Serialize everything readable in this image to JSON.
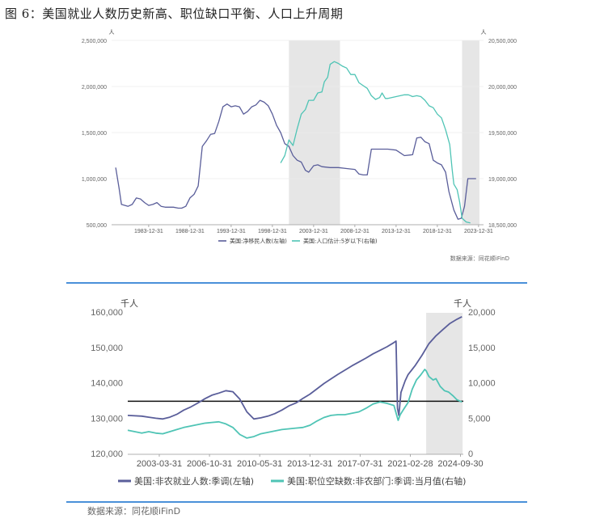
{
  "figure_title": "图 6：美国就业人数历史新高、职位缺口平衡、人口上升周期",
  "chart_data": [
    {
      "type": "line",
      "left_unit": "人",
      "right_unit": "人",
      "ylim_left": [
        500000,
        2500000
      ],
      "ylim_right": [
        18500000,
        20500000
      ],
      "yticks_left": [
        "500,000",
        "1,000,000",
        "1,500,000",
        "2,000,000",
        "2,500,000"
      ],
      "yticks_right": [
        "18,500,000",
        "19,000,000",
        "19,500,000",
        "20,000,000",
        "20,500,000"
      ],
      "xticks": [
        "1983-12-31",
        "1988-12-31",
        "1993-12-31",
        "1998-12-31",
        "2003-12-31",
        "2008-12-31",
        "2013-12-31",
        "2018-12-31",
        "2023-12-31"
      ],
      "shaded_periods": [
        [
          2001.0,
          2007.2
        ],
        [
          2022.0,
          2024.1
        ]
      ],
      "series": [
        {
          "name": "美国:净移民人数(左轴)",
          "axis": "left",
          "color": "#5a5e9a",
          "points": [
            [
              1980.0,
              1120000
            ],
            [
              1980.4,
              900000
            ],
            [
              1980.7,
              720000
            ],
            [
              1981.5,
              700000
            ],
            [
              1982.0,
              720000
            ],
            [
              1982.5,
              790000
            ],
            [
              1983.0,
              780000
            ],
            [
              1983.5,
              740000
            ],
            [
              1984.0,
              710000
            ],
            [
              1984.5,
              720000
            ],
            [
              1985.0,
              740000
            ],
            [
              1985.5,
              700000
            ],
            [
              1986.0,
              690000
            ],
            [
              1987.0,
              690000
            ],
            [
              1987.6,
              680000
            ],
            [
              1988.0,
              680000
            ],
            [
              1988.5,
              700000
            ],
            [
              1989.0,
              790000
            ],
            [
              1989.5,
              830000
            ],
            [
              1990.0,
              920000
            ],
            [
              1990.5,
              1350000
            ],
            [
              1991.0,
              1410000
            ],
            [
              1991.5,
              1480000
            ],
            [
              1992.0,
              1490000
            ],
            [
              1992.5,
              1620000
            ],
            [
              1993.0,
              1780000
            ],
            [
              1993.5,
              1810000
            ],
            [
              1994.0,
              1780000
            ],
            [
              1994.5,
              1790000
            ],
            [
              1995.0,
              1780000
            ],
            [
              1995.5,
              1700000
            ],
            [
              1996.0,
              1730000
            ],
            [
              1996.5,
              1780000
            ],
            [
              1997.0,
              1800000
            ],
            [
              1997.5,
              1850000
            ],
            [
              1998.0,
              1830000
            ],
            [
              1998.5,
              1790000
            ],
            [
              1999.0,
              1700000
            ],
            [
              1999.5,
              1580000
            ],
            [
              2000.0,
              1500000
            ],
            [
              2000.5,
              1380000
            ],
            [
              2001.0,
              1350000
            ],
            [
              2001.5,
              1250000
            ],
            [
              2002.0,
              1200000
            ],
            [
              2002.5,
              1180000
            ],
            [
              2003.0,
              1090000
            ],
            [
              2003.4,
              1070000
            ],
            [
              2004.0,
              1140000
            ],
            [
              2004.5,
              1150000
            ],
            [
              2005.0,
              1130000
            ],
            [
              2006.0,
              1120000
            ],
            [
              2007.0,
              1120000
            ],
            [
              2008.0,
              1110000
            ],
            [
              2009.0,
              1100000
            ],
            [
              2009.5,
              1050000
            ],
            [
              2010.0,
              1040000
            ],
            [
              2010.5,
              1040000
            ],
            [
              2011.0,
              1320000
            ],
            [
              2012.0,
              1320000
            ],
            [
              2013.0,
              1320000
            ],
            [
              2014.0,
              1310000
            ],
            [
              2014.5,
              1280000
            ],
            [
              2015.0,
              1250000
            ],
            [
              2016.0,
              1260000
            ],
            [
              2016.5,
              1440000
            ],
            [
              2017.0,
              1450000
            ],
            [
              2017.5,
              1400000
            ],
            [
              2018.0,
              1380000
            ],
            [
              2018.5,
              1200000
            ],
            [
              2019.0,
              1170000
            ],
            [
              2019.5,
              1150000
            ],
            [
              2020.0,
              1070000
            ],
            [
              2020.4,
              860000
            ],
            [
              2021.0,
              660000
            ],
            [
              2021.5,
              560000
            ],
            [
              2021.9,
              570000
            ],
            [
              2022.3,
              700000
            ],
            [
              2022.7,
              1000000
            ],
            [
              2023.2,
              1000000
            ],
            [
              2023.7,
              1000000
            ]
          ]
        },
        {
          "name": "美国:人口估计:5岁以下(右轴)",
          "axis": "right",
          "color": "#4fc4b5",
          "points": [
            [
              2000.0,
              19170000
            ],
            [
              2000.5,
              19250000
            ],
            [
              2001.0,
              19420000
            ],
            [
              2001.5,
              19360000
            ],
            [
              2002.0,
              19540000
            ],
            [
              2002.5,
              19700000
            ],
            [
              2003.0,
              19750000
            ],
            [
              2003.4,
              19850000
            ],
            [
              2004.0,
              19850000
            ],
            [
              2004.5,
              19930000
            ],
            [
              2005.0,
              19940000
            ],
            [
              2005.3,
              20050000
            ],
            [
              2005.7,
              20100000
            ],
            [
              2006.0,
              20240000
            ],
            [
              2006.5,
              20270000
            ],
            [
              2007.0,
              20250000
            ],
            [
              2007.5,
              20220000
            ],
            [
              2008.0,
              20200000
            ],
            [
              2008.5,
              20130000
            ],
            [
              2009.0,
              20130000
            ],
            [
              2009.5,
              20040000
            ],
            [
              2010.0,
              20010000
            ],
            [
              2010.5,
              19980000
            ],
            [
              2011.0,
              19900000
            ],
            [
              2011.5,
              19860000
            ],
            [
              2012.0,
              19880000
            ],
            [
              2012.3,
              19930000
            ],
            [
              2012.7,
              19870000
            ],
            [
              2013.0,
              19870000
            ],
            [
              2014.0,
              19890000
            ],
            [
              2015.0,
              19910000
            ],
            [
              2015.5,
              19910000
            ],
            [
              2016.0,
              19890000
            ],
            [
              2016.5,
              19900000
            ],
            [
              2017.0,
              19890000
            ],
            [
              2017.5,
              19850000
            ],
            [
              2018.0,
              19790000
            ],
            [
              2018.5,
              19770000
            ],
            [
              2019.0,
              19700000
            ],
            [
              2019.5,
              19660000
            ],
            [
              2020.0,
              19530000
            ],
            [
              2020.5,
              19370000
            ],
            [
              2020.8,
              19100000
            ],
            [
              2021.0,
              18940000
            ],
            [
              2021.4,
              18880000
            ],
            [
              2021.7,
              18750000
            ],
            [
              2022.0,
              18570000
            ],
            [
              2022.5,
              18530000
            ],
            [
              2023.0,
              18520000
            ]
          ]
        }
      ],
      "source": "数据来源：同花顺iFinD"
    },
    {
      "type": "line",
      "left_unit": "千人",
      "right_unit": "千人",
      "ylim_left": [
        120000,
        160000
      ],
      "ylim_right": [
        0,
        20000
      ],
      "yticks_left": [
        "120,000",
        "130,000",
        "140,000",
        "150,000",
        "160,000"
      ],
      "yticks_right": [
        "0",
        "5,000",
        "10,000",
        "15,000",
        "20,000"
      ],
      "xticks": [
        "2003-03-31",
        "2006-10-31",
        "2010-05-31",
        "2013-12-31",
        "2017-07-31",
        "2021-02-28",
        "2024-09-30"
      ],
      "shaded_periods": [
        [
          2022.3,
          2024.9
        ]
      ],
      "reference_line_left": 135000,
      "series": [
        {
          "name": "美国:非农就业人数:季调(左轴)",
          "axis": "left",
          "color": "#5a5e9a",
          "points": [
            [
              2001.0,
              131000
            ],
            [
              2002.0,
              130800
            ],
            [
              2002.5,
              130500
            ],
            [
              2003.0,
              130200
            ],
            [
              2003.5,
              130000
            ],
            [
              2004.0,
              130500
            ],
            [
              2004.5,
              131300
            ],
            [
              2005.0,
              132500
            ],
            [
              2005.5,
              133400
            ],
            [
              2006.0,
              134500
            ],
            [
              2006.5,
              135700
            ],
            [
              2007.0,
              136700
            ],
            [
              2007.5,
              137300
            ],
            [
              2008.0,
              138000
            ],
            [
              2008.5,
              137700
            ],
            [
              2009.0,
              135600
            ],
            [
              2009.5,
              132000
            ],
            [
              2010.0,
              130000
            ],
            [
              2010.5,
              130300
            ],
            [
              2011.0,
              130800
            ],
            [
              2011.5,
              131500
            ],
            [
              2012.0,
              132500
            ],
            [
              2012.5,
              133700
            ],
            [
              2013.0,
              134500
            ],
            [
              2013.5,
              135800
            ],
            [
              2014.0,
              137000
            ],
            [
              2014.5,
              138500
            ],
            [
              2015.0,
              140000
            ],
            [
              2015.5,
              141300
            ],
            [
              2016.0,
              142600
            ],
            [
              2016.5,
              143800
            ],
            [
              2017.0,
              145000
            ],
            [
              2017.5,
              146100
            ],
            [
              2018.0,
              147200
            ],
            [
              2018.5,
              148400
            ],
            [
              2019.0,
              149400
            ],
            [
              2019.5,
              150400
            ],
            [
              2020.0,
              151600
            ],
            [
              2020.15,
              152000
            ],
            [
              2020.25,
              133000
            ],
            [
              2020.35,
              131000
            ],
            [
              2020.5,
              137500
            ],
            [
              2020.8,
              140800
            ],
            [
              2021.0,
              142500
            ],
            [
              2021.5,
              145000
            ],
            [
              2022.0,
              148000
            ],
            [
              2022.5,
              151300
            ],
            [
              2023.0,
              153500
            ],
            [
              2023.5,
              155300
            ],
            [
              2024.0,
              157000
            ],
            [
              2024.5,
              158200
            ],
            [
              2024.85,
              158900
            ]
          ]
        },
        {
          "name": "美国:职位空缺数:非农部门:季调:当月值(右轴)",
          "axis": "right",
          "color": "#4fc4b5",
          "points": [
            [
              2001.0,
              3400
            ],
            [
              2001.5,
              3200
            ],
            [
              2002.0,
              3000
            ],
            [
              2002.5,
              3200
            ],
            [
              2003.0,
              3000
            ],
            [
              2003.5,
              2900
            ],
            [
              2004.0,
              3200
            ],
            [
              2004.5,
              3500
            ],
            [
              2005.0,
              3800
            ],
            [
              2005.5,
              4000
            ],
            [
              2006.0,
              4200
            ],
            [
              2006.5,
              4400
            ],
            [
              2007.0,
              4500
            ],
            [
              2007.5,
              4600
            ],
            [
              2008.0,
              4300
            ],
            [
              2008.5,
              3800
            ],
            [
              2009.0,
              2800
            ],
            [
              2009.5,
              2300
            ],
            [
              2010.0,
              2500
            ],
            [
              2010.5,
              2900
            ],
            [
              2011.0,
              3100
            ],
            [
              2011.5,
              3300
            ],
            [
              2012.0,
              3500
            ],
            [
              2012.5,
              3600
            ],
            [
              2013.0,
              3700
            ],
            [
              2013.5,
              3800
            ],
            [
              2014.0,
              4100
            ],
            [
              2014.5,
              4700
            ],
            [
              2015.0,
              5200
            ],
            [
              2015.5,
              5500
            ],
            [
              2016.0,
              5600
            ],
            [
              2016.5,
              5600
            ],
            [
              2017.0,
              5800
            ],
            [
              2017.5,
              6000
            ],
            [
              2018.0,
              6500
            ],
            [
              2018.5,
              7100
            ],
            [
              2019.0,
              7400
            ],
            [
              2019.5,
              7200
            ],
            [
              2020.0,
              6900
            ],
            [
              2020.3,
              4800
            ],
            [
              2020.45,
              5600
            ],
            [
              2020.7,
              6400
            ],
            [
              2021.0,
              7300
            ],
            [
              2021.3,
              9200
            ],
            [
              2021.6,
              10500
            ],
            [
              2021.9,
              11200
            ],
            [
              2022.2,
              12000
            ],
            [
              2022.3,
              11800
            ],
            [
              2022.5,
              11000
            ],
            [
              2022.8,
              10500
            ],
            [
              2023.0,
              10700
            ],
            [
              2023.3,
              9600
            ],
            [
              2023.6,
              9000
            ],
            [
              2023.9,
              8800
            ],
            [
              2024.2,
              8300
            ],
            [
              2024.5,
              7700
            ],
            [
              2024.85,
              7400
            ]
          ]
        }
      ],
      "source": "数据来源：同花顺iFinD"
    }
  ]
}
